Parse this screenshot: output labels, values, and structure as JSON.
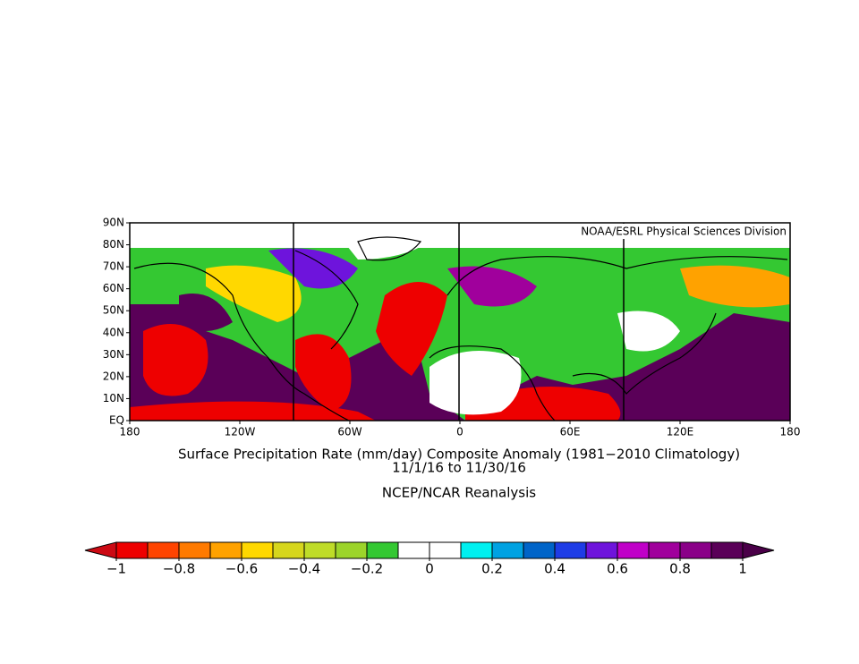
{
  "map": {
    "credit": "NOAA/ESRL Physical Sciences Division",
    "title": "Surface Precipitation Rate (mm/day) Composite Anomaly (1981−2010 Climatology)",
    "dates": "11/1/16  to 11/30/16",
    "source": "NCEP/NCAR Reanalysis",
    "xlim": [
      -180,
      180
    ],
    "ylim": [
      0,
      90
    ],
    "xticks": [
      {
        "value": -180,
        "label": "180"
      },
      {
        "value": -120,
        "label": "120W"
      },
      {
        "value": -60,
        "label": "60W"
      },
      0,
      {
        "value": 60,
        "label": "60E"
      },
      {
        "value": 120,
        "label": "120E"
      },
      180
    ],
    "yticks": [
      {
        "value": 0,
        "label": "EQ"
      },
      {
        "value": 10,
        "label": "10N"
      },
      {
        "value": 20,
        "label": "20N"
      },
      {
        "value": 30,
        "label": "30N"
      },
      {
        "value": 40,
        "label": "40N"
      },
      {
        "value": 50,
        "label": "50N"
      },
      {
        "value": 60,
        "label": "60N"
      },
      {
        "value": 70,
        "label": "70N"
      },
      {
        "value": 80,
        "label": "80N"
      },
      {
        "value": 90,
        "label": "90N"
      }
    ]
  },
  "colorbar": {
    "lim": [
      -1,
      1
    ],
    "ticks": [
      {
        "value": -1,
        "label": "−1"
      },
      {
        "value": -0.8,
        "label": "−0.8"
      },
      {
        "value": -0.6,
        "label": "−0.6"
      },
      {
        "value": -0.4,
        "label": "−0.4"
      },
      {
        "value": -0.2,
        "label": "−0.2"
      },
      0,
      0.2,
      0.4,
      0.6,
      0.8,
      1
    ],
    "colors": [
      "#ee0000",
      "#ff4400",
      "#ff7a00",
      "#ffa200",
      "#ffd800",
      "#d6d61c",
      "#bfdc28",
      "#9cd42a",
      "#34c832",
      "#ffffff",
      "#ffffff",
      "#00f0f0",
      "#00a2e2",
      "#0064c8",
      "#1e3ce6",
      "#6e14dc",
      "#c000c8",
      "#a0009c",
      "#8a0088",
      "#5a0058"
    ],
    "low_color": "#cc0a14",
    "high_color": "#4a0048"
  }
}
